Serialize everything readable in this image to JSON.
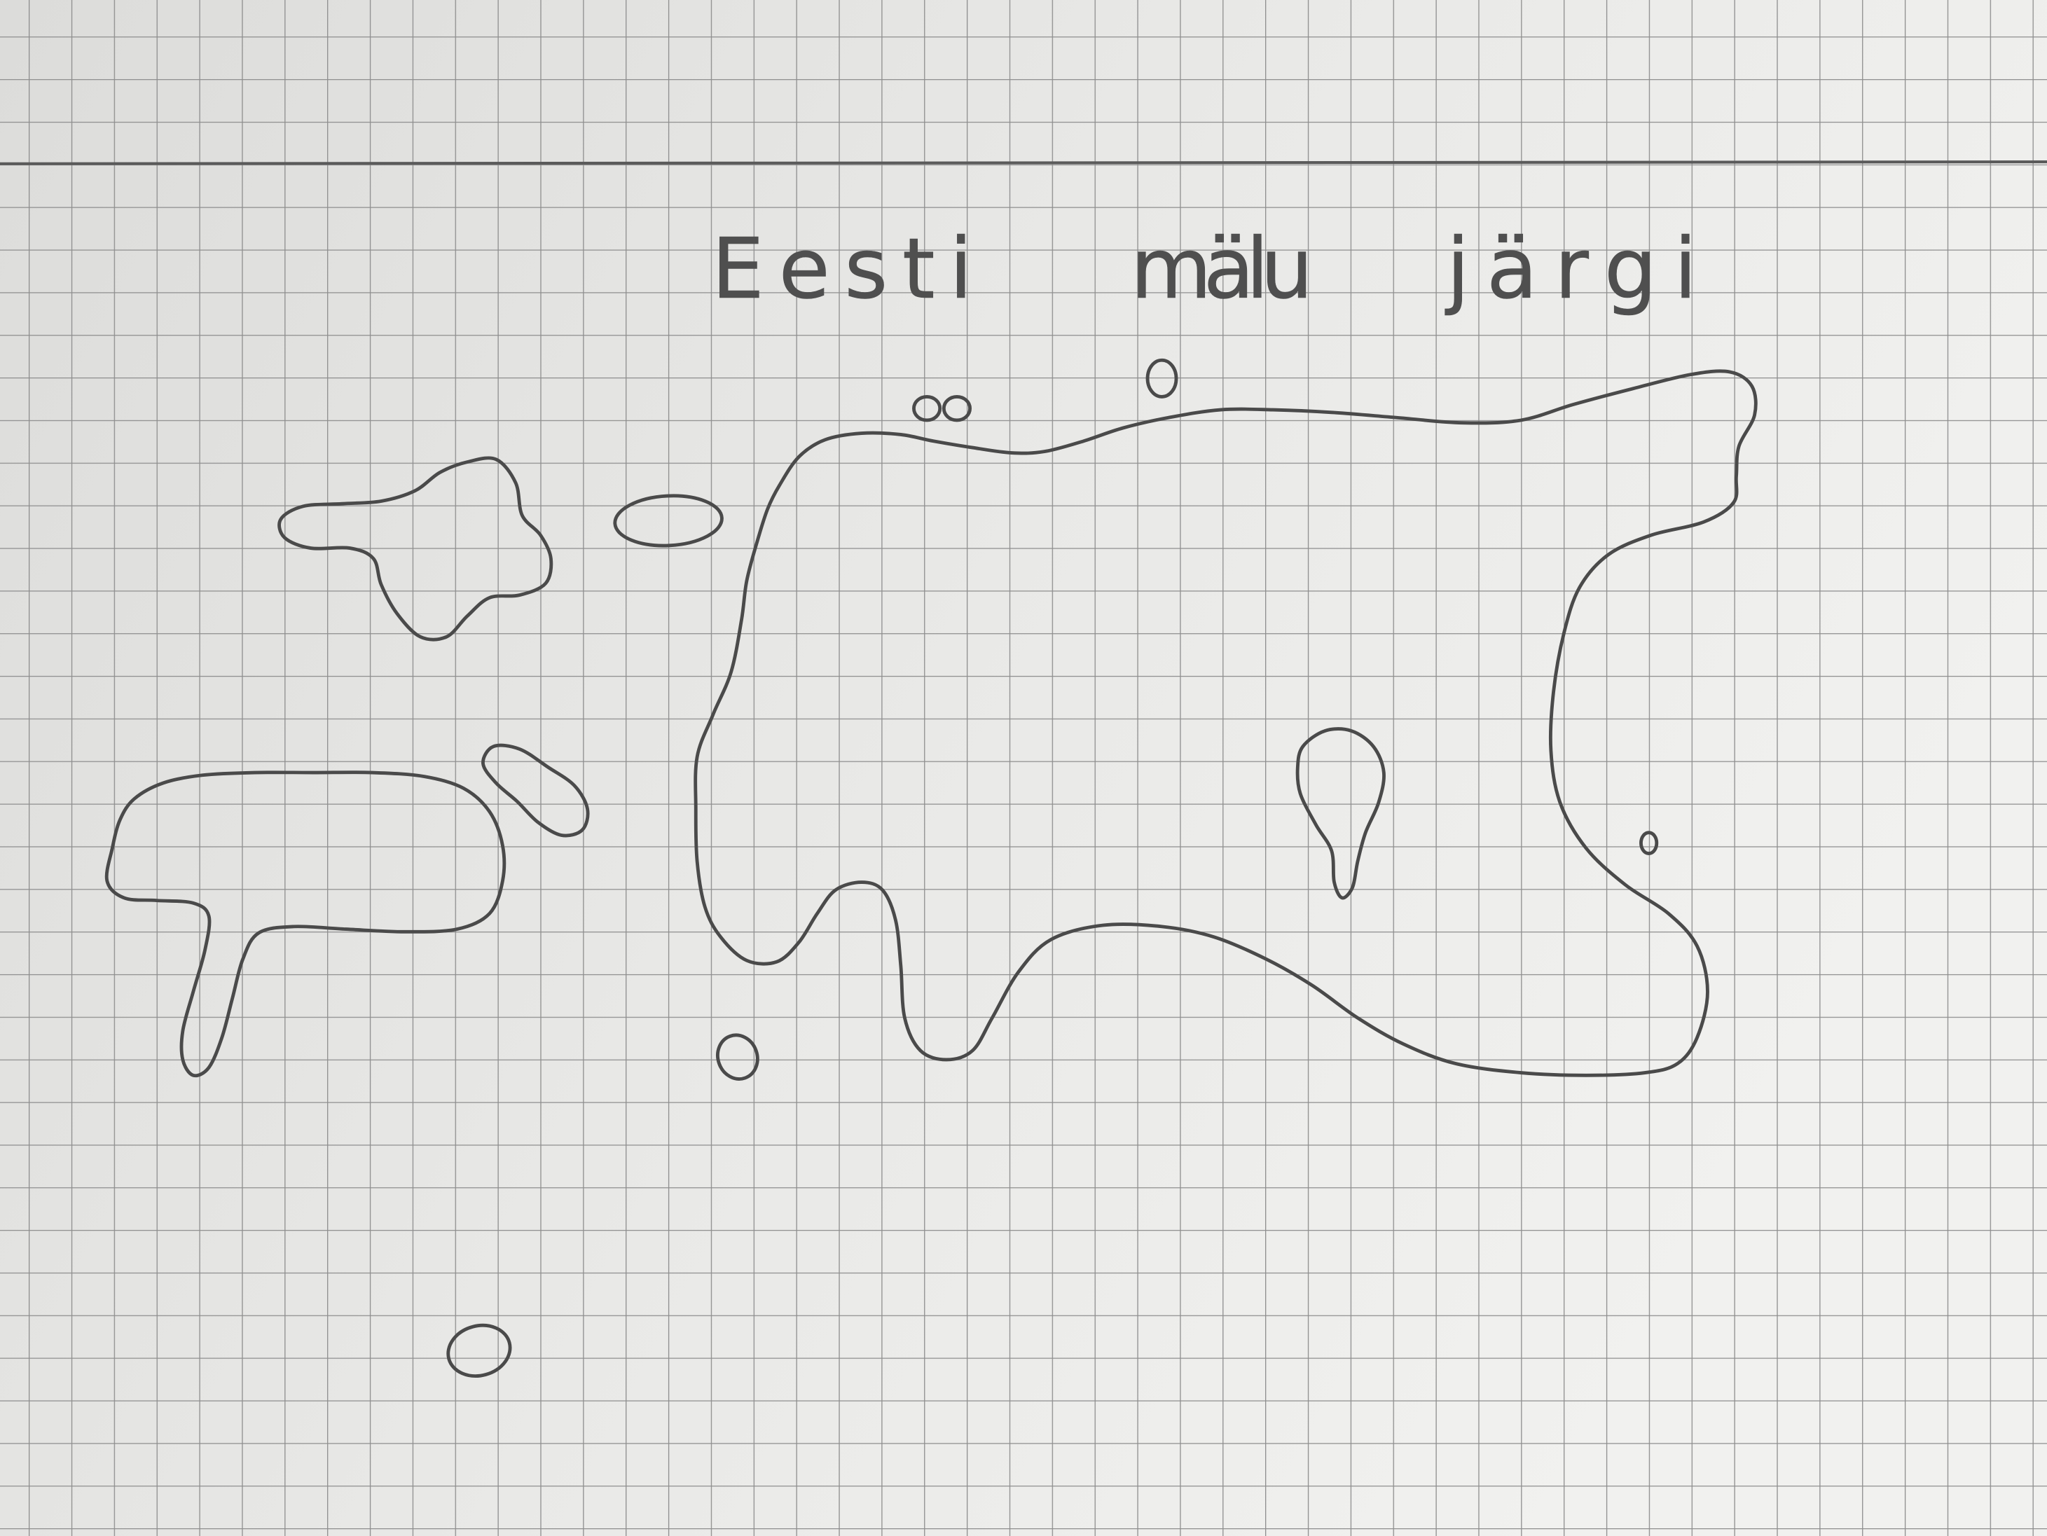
{
  "title": {
    "words": [
      "Eesti",
      "mälu",
      "järgi"
    ]
  },
  "colors": {
    "pencil": "#4a4a4a",
    "paper": "#ebebe9",
    "grid": "#8e8e8e",
    "margin_line": "#555555"
  }
}
